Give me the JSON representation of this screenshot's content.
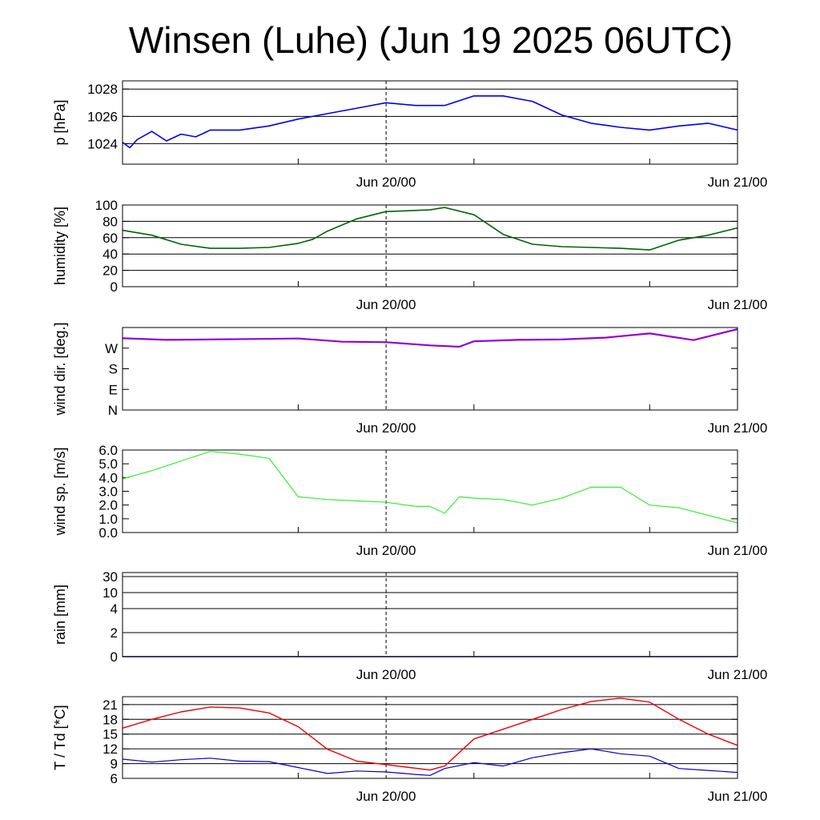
{
  "title": "Winsen (Luhe) (Jun 19 2025 06UTC)",
  "x_axis": {
    "start": "2025-06-19 06:00 UTC",
    "end": "2025-06-21 00:00 UTC",
    "marker": "2025-06-20 00:00 UTC",
    "labels": [
      {
        "t": "2025-06-20 00:00 UTC",
        "text": "Jun 20/00"
      },
      {
        "t": "2025-06-21 00:00 UTC",
        "text": "Jun 21/00"
      }
    ]
  },
  "colors": {
    "pressure": "#0000ee",
    "humidity": "#006400",
    "wind_direction": "#9400d3",
    "wind_speed": "#33ee33",
    "rain": "#000080",
    "temperature": "#ee0000",
    "dewpoint": "#0000cc"
  },
  "chart_data": [
    {
      "type": "line",
      "ylabel": "p [hPa]",
      "ylim": [
        1022.5,
        1028.6
      ],
      "yticks": [
        1024,
        1026,
        1028
      ],
      "ticklabels": [
        "1024",
        "1026",
        "1028"
      ],
      "grid": true,
      "series": [
        {
          "key": "pressure",
          "x": [
            "2025-06-19 06:00",
            "2025-06-19 06:30",
            "2025-06-19 07:00",
            "2025-06-19 08:00",
            "2025-06-19 09:00",
            "2025-06-19 10:00",
            "2025-06-19 11:00",
            "2025-06-19 12:00",
            "2025-06-19 14:00",
            "2025-06-19 16:00",
            "2025-06-19 18:00",
            "2025-06-19 20:00",
            "2025-06-19 22:00",
            "2025-06-20 00:00",
            "2025-06-20 02:00",
            "2025-06-20 04:00",
            "2025-06-20 06:00",
            "2025-06-20 08:00",
            "2025-06-20 10:00",
            "2025-06-20 12:00",
            "2025-06-20 14:00",
            "2025-06-20 16:00",
            "2025-06-20 18:00",
            "2025-06-20 20:00",
            "2025-06-20 22:00",
            "2025-06-21 00:00"
          ],
          "y": [
            1024.1,
            1023.7,
            1024.3,
            1024.9,
            1024.2,
            1024.7,
            1024.5,
            1025.0,
            1025.0,
            1025.3,
            1025.8,
            1026.2,
            1026.6,
            1027.0,
            1026.8,
            1026.8,
            1027.5,
            1027.5,
            1027.1,
            1026.1,
            1025.5,
            1025.2,
            1025.0,
            1025.3,
            1025.5,
            1025.0
          ]
        }
      ]
    },
    {
      "type": "line",
      "ylabel": "humidity [%]",
      "ylim": [
        0,
        100
      ],
      "yticks": [
        0,
        20,
        40,
        60,
        80,
        100
      ],
      "ticklabels": [
        "0",
        "20",
        "40",
        "60",
        "80",
        "100"
      ],
      "grid": true,
      "series": [
        {
          "key": "humidity",
          "x": [
            "2025-06-19 06:00",
            "2025-06-19 08:00",
            "2025-06-19 10:00",
            "2025-06-19 12:00",
            "2025-06-19 14:00",
            "2025-06-19 16:00",
            "2025-06-19 18:00",
            "2025-06-19 19:00",
            "2025-06-19 20:00",
            "2025-06-19 22:00",
            "2025-06-20 00:00",
            "2025-06-20 03:00",
            "2025-06-20 04:00",
            "2025-06-20 06:00",
            "2025-06-20 08:00",
            "2025-06-20 10:00",
            "2025-06-20 12:00",
            "2025-06-20 14:00",
            "2025-06-20 16:00",
            "2025-06-20 18:00",
            "2025-06-20 20:00",
            "2025-06-20 22:00",
            "2025-06-21 00:00"
          ],
          "y": [
            69,
            63,
            52,
            47,
            47,
            48,
            53,
            58,
            68,
            83,
            92,
            94,
            97,
            88,
            64,
            52,
            49,
            48,
            47,
            45,
            57,
            63,
            72
          ]
        }
      ]
    },
    {
      "type": "line",
      "ylabel": "wind dir. [deg.]",
      "ylim": [
        0,
        360
      ],
      "yticks": [
        0,
        90,
        180,
        270
      ],
      "ticklabels": [
        "N",
        "E",
        "S",
        "W"
      ],
      "grid": false,
      "series": [
        {
          "key": "wind_direction",
          "x": [
            "2025-06-19 06:00",
            "2025-06-19 09:00",
            "2025-06-19 12:00",
            "2025-06-19 15:00",
            "2025-06-19 18:00",
            "2025-06-19 21:00",
            "2025-06-20 00:00",
            "2025-06-20 03:00",
            "2025-06-20 05:00",
            "2025-06-20 06:00",
            "2025-06-20 09:00",
            "2025-06-20 12:00",
            "2025-06-20 15:00",
            "2025-06-20 18:00",
            "2025-06-20 21:00",
            "2025-06-21 00:00"
          ],
          "y": [
            313,
            306,
            308,
            310,
            312,
            298,
            296,
            282,
            276,
            300,
            306,
            308,
            316,
            334,
            305,
            353
          ]
        }
      ]
    },
    {
      "type": "line",
      "ylabel": "wind sp. [m/s]",
      "ylim": [
        0,
        6.0
      ],
      "yticks": [
        0,
        1,
        2,
        3,
        4,
        5,
        6
      ],
      "ticklabels": [
        "0.0",
        "1.0",
        "2.0",
        "3.0",
        "4.0",
        "5.0",
        "6.0"
      ],
      "grid": false,
      "series": [
        {
          "key": "wind_speed",
          "x": [
            "2025-06-19 06:00",
            "2025-06-19 08:00",
            "2025-06-19 10:00",
            "2025-06-19 12:00",
            "2025-06-19 14:00",
            "2025-06-19 16:00",
            "2025-06-19 18:00",
            "2025-06-19 20:00",
            "2025-06-19 22:00",
            "2025-06-20 00:00",
            "2025-06-20 02:00",
            "2025-06-20 03:00",
            "2025-06-20 04:00",
            "2025-06-20 05:00",
            "2025-06-20 06:00",
            "2025-06-20 08:00",
            "2025-06-20 10:00",
            "2025-06-20 12:00",
            "2025-06-20 14:00",
            "2025-06-20 16:00",
            "2025-06-20 18:00",
            "2025-06-20 20:00",
            "2025-06-21 00:00"
          ],
          "y": [
            3.9,
            4.5,
            5.2,
            5.9,
            5.7,
            5.4,
            2.6,
            2.4,
            2.3,
            2.2,
            1.9,
            1.9,
            1.4,
            2.6,
            2.5,
            2.4,
            2.0,
            2.5,
            3.3,
            3.3,
            2.0,
            1.8,
            0.7
          ]
        }
      ]
    },
    {
      "type": "line",
      "ylabel": "rain [mm]",
      "yticks": [
        0,
        2,
        4,
        10,
        30
      ],
      "ticklabels": [
        "0",
        "2",
        "4",
        "10",
        "30"
      ],
      "grid": true,
      "series": [
        {
          "key": "rain",
          "x": [
            "2025-06-19 06:00",
            "2025-06-21 00:00"
          ],
          "y": [
            0,
            0
          ]
        }
      ]
    },
    {
      "type": "line",
      "ylabel": "T / Td [*C]",
      "ylim": [
        6,
        22.6
      ],
      "yticks": [
        6,
        9,
        12,
        15,
        18,
        21
      ],
      "ticklabels": [
        "6",
        "9",
        "12",
        "15",
        "18",
        "21"
      ],
      "grid": true,
      "series": [
        {
          "key": "temperature",
          "x": [
            "2025-06-19 06:00",
            "2025-06-19 08:00",
            "2025-06-19 10:00",
            "2025-06-19 12:00",
            "2025-06-19 14:00",
            "2025-06-19 16:00",
            "2025-06-19 18:00",
            "2025-06-19 20:00",
            "2025-06-19 22:00",
            "2025-06-20 00:00",
            "2025-06-20 03:00",
            "2025-06-20 04:00",
            "2025-06-20 06:00",
            "2025-06-20 08:00",
            "2025-06-20 10:00",
            "2025-06-20 12:00",
            "2025-06-20 14:00",
            "2025-06-20 16:00",
            "2025-06-20 18:00",
            "2025-06-20 20:00",
            "2025-06-20 22:00",
            "2025-06-21 00:00"
          ],
          "y": [
            16.2,
            18.0,
            19.5,
            20.5,
            20.3,
            19.3,
            16.5,
            11.9,
            9.5,
            8.8,
            7.7,
            8.5,
            14.0,
            16.0,
            18.0,
            20.0,
            21.6,
            22.3,
            21.5,
            18.0,
            15.0,
            12.7
          ]
        },
        {
          "key": "dewpoint",
          "x": [
            "2025-06-19 06:00",
            "2025-06-19 08:00",
            "2025-06-19 10:00",
            "2025-06-19 12:00",
            "2025-06-19 14:00",
            "2025-06-19 16:00",
            "2025-06-19 18:00",
            "2025-06-19 20:00",
            "2025-06-19 22:00",
            "2025-06-20 00:00",
            "2025-06-20 02:00",
            "2025-06-20 03:00",
            "2025-06-20 04:00",
            "2025-06-20 06:00",
            "2025-06-20 08:00",
            "2025-06-20 10:00",
            "2025-06-20 12:00",
            "2025-06-20 14:00",
            "2025-06-20 16:00",
            "2025-06-20 18:00",
            "2025-06-20 20:00",
            "2025-06-21 00:00"
          ],
          "y": [
            9.9,
            9.3,
            9.8,
            10.1,
            9.5,
            9.4,
            8.2,
            7.0,
            7.5,
            7.3,
            6.8,
            6.6,
            8.0,
            9.2,
            8.5,
            10.2,
            11.2,
            12.0,
            11.0,
            10.5,
            8.0,
            7.2
          ]
        }
      ]
    }
  ]
}
